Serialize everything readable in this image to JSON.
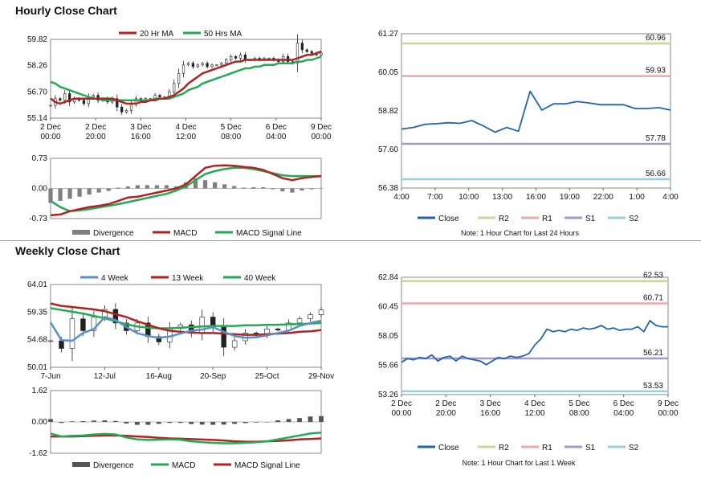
{
  "sections": {
    "hourly_title": "Hourly Close Chart",
    "weekly_title": "Weekly Close Chart"
  },
  "colors": {
    "ma_red": "#b22222",
    "ma_green": "#22aa55",
    "close_blue": "#2166ac",
    "r2": "#c8d89a",
    "r1": "#e8aaaa",
    "s1": "#a898c8",
    "s2": "#9ad0dc",
    "week4": "#5b8fc8",
    "divergence": "#808080"
  },
  "chart_data": [
    {
      "id": "hourly_price",
      "type": "candlestick",
      "legend": [
        "20 Hr MA",
        "50 Hrs MA"
      ],
      "ylim": [
        55.14,
        59.82
      ],
      "yticks": [
        "59.82",
        "58.26",
        "56.70",
        "55.14"
      ],
      "xticks": [
        [
          "2 Dec",
          "00:00"
        ],
        [
          "2 Dec",
          "20:00"
        ],
        [
          "3 Dec",
          "16:00"
        ],
        [
          "4 Dec",
          "12:00"
        ],
        [
          "5 Dec",
          "08:00"
        ],
        [
          "6 Dec",
          "04:00"
        ],
        [
          "9 Dec",
          "00:00"
        ]
      ],
      "close": [
        55.9,
        56.3,
        56.2,
        56.6,
        56.1,
        56.3,
        56.2,
        56.0,
        56.4,
        56.5,
        56.2,
        56.3,
        56.1,
        56.3,
        55.8,
        55.5,
        55.6,
        56.0,
        56.3,
        56.2,
        56.3,
        56.3,
        56.5,
        56.4,
        56.4,
        56.7,
        57.2,
        57.8,
        58.3,
        58.4,
        58.2,
        58.3,
        58.4,
        58.2,
        58.3,
        58.3,
        58.4,
        58.6,
        58.8,
        58.7,
        58.9,
        58.6,
        58.6,
        58.7,
        58.6,
        58.7,
        58.7,
        58.6,
        58.5,
        58.8,
        58.5,
        58.4,
        59.6,
        59.2,
        59.1,
        59.0,
        58.9,
        59.0
      ],
      "ma20": [
        56.3,
        56.1,
        56.0,
        56.1,
        56.2,
        56.3,
        56.3,
        56.3,
        56.3,
        56.3,
        56.3,
        56.3,
        56.3,
        56.3,
        56.2,
        56.1,
        56.0,
        56.0,
        56.0,
        56.1,
        56.1,
        56.2,
        56.2,
        56.3,
        56.3,
        56.4,
        56.5,
        56.7,
        56.9,
        57.2,
        57.4,
        57.6,
        57.8,
        57.9,
        58.0,
        58.1,
        58.2,
        58.3,
        58.4,
        58.5,
        58.5,
        58.6,
        58.6,
        58.6,
        58.6,
        58.6,
        58.6,
        58.6,
        58.6,
        58.6,
        58.6,
        58.6,
        58.7,
        58.8,
        58.9,
        58.9,
        59.0,
        59.1
      ],
      "ma50": [
        57.3,
        57.2,
        57.0,
        56.9,
        56.8,
        56.7,
        56.6,
        56.5,
        56.4,
        56.3,
        56.3,
        56.2,
        56.2,
        56.2,
        56.2,
        56.2,
        56.2,
        56.2,
        56.2,
        56.2,
        56.2,
        56.2,
        56.3,
        56.3,
        56.3,
        56.3,
        56.4,
        56.5,
        56.6,
        56.8,
        56.9,
        57.0,
        57.2,
        57.3,
        57.4,
        57.5,
        57.6,
        57.7,
        57.8,
        57.9,
        58.0,
        58.1,
        58.1,
        58.2,
        58.2,
        58.3,
        58.3,
        58.3,
        58.4,
        58.4,
        58.4,
        58.4,
        58.5,
        58.5,
        58.6,
        58.6,
        58.7,
        58.8
      ]
    },
    {
      "id": "hourly_macd",
      "type": "line",
      "legend": [
        "Divergence",
        "MACD",
        "MACD Signal Line"
      ],
      "ylim": [
        -0.73,
        0.73
      ],
      "yticks": [
        "0.73",
        "0.00",
        "-0.73"
      ],
      "macd": [
        -0.65,
        -0.63,
        -0.55,
        -0.5,
        -0.45,
        -0.42,
        -0.38,
        -0.3,
        -0.22,
        -0.2,
        -0.15,
        -0.1,
        -0.05,
        0.0,
        0.1,
        0.3,
        0.5,
        0.55,
        0.56,
        0.55,
        0.52,
        0.5,
        0.45,
        0.35,
        0.25,
        0.2,
        0.25,
        0.28,
        0.3
      ],
      "signal": [
        -0.3,
        -0.45,
        -0.55,
        -0.53,
        -0.5,
        -0.46,
        -0.42,
        -0.38,
        -0.33,
        -0.28,
        -0.23,
        -0.18,
        -0.13,
        -0.05,
        0.05,
        0.2,
        0.35,
        0.42,
        0.47,
        0.5,
        0.5,
        0.47,
        0.42,
        0.37,
        0.32,
        0.3,
        0.3,
        0.3,
        0.3
      ],
      "divergence": [
        -0.35,
        -0.3,
        -0.25,
        -0.2,
        -0.15,
        -0.1,
        -0.06,
        0.02,
        0.05,
        0.08,
        0.08,
        0.08,
        0.08,
        0.05,
        0.15,
        0.25,
        0.2,
        0.15,
        0.1,
        0.06,
        0.02,
        0.03,
        0.03,
        -0.02,
        -0.07,
        -0.1,
        -0.05,
        -0.02,
        0.0
      ]
    },
    {
      "id": "hourly_24h",
      "type": "line",
      "ylim": [
        56.38,
        61.27
      ],
      "yticks": [
        "61.27",
        "60.05",
        "58.82",
        "57.60",
        "56.38"
      ],
      "xticks": [
        "4:00",
        "7:00",
        "10:00",
        "13:00",
        "16:00",
        "19:00",
        "22:00",
        "1:00",
        "4:00"
      ],
      "levels": {
        "R2": 60.96,
        "R1": 59.93,
        "S1": 57.78,
        "S2": 56.66
      },
      "level_labels": {
        "R2": "60.96",
        "R1": "59.93",
        "S1": "57.78",
        "S2": "56.66"
      },
      "close": [
        58.25,
        58.3,
        58.4,
        58.42,
        58.45,
        58.43,
        58.52,
        58.35,
        58.15,
        58.3,
        58.18,
        59.45,
        58.85,
        59.05,
        59.05,
        59.12,
        59.08,
        59.02,
        59.02,
        59.02,
        58.9,
        58.9,
        58.93,
        58.85
      ],
      "legend": [
        "Close",
        "R2",
        "R1",
        "S1",
        "S2"
      ],
      "note": "Note: 1 Hour Chart for Last 24 Hours"
    },
    {
      "id": "weekly_price",
      "type": "candlestick",
      "legend": [
        "4 Week",
        "13 Week",
        "40 Week"
      ],
      "ylim": [
        50.01,
        64.01
      ],
      "yticks": [
        "64.01",
        "59.35",
        "54.68",
        "50.01"
      ],
      "xticks": [
        "7-Jun",
        "12-Jul",
        "16-Aug",
        "20-Sep",
        "25-Oct",
        "29-Nov"
      ],
      "close": [
        54.5,
        53.2,
        58.2,
        56.2,
        58.5,
        59.8,
        57.5,
        56.2,
        57.5,
        55.2,
        54.3,
        56.6,
        57.2,
        55.8,
        58.5,
        56.8,
        53.4,
        54.5,
        55.8,
        55.5,
        56.5,
        56.3,
        57.5,
        58.2,
        58.9,
        59.7
      ],
      "week4": [
        57.6,
        54.6,
        54.5,
        55.8,
        56.5,
        58.5,
        58.0,
        56.8,
        55.8,
        55.3,
        55.0,
        55.2,
        55.7,
        56.2,
        56.4,
        56.8,
        56.0,
        55.3,
        55.0,
        55.1,
        55.4,
        55.8,
        56.2,
        57.0,
        57.5,
        57.9
      ],
      "week13": [
        60.8,
        60.4,
        60.2,
        60.0,
        59.8,
        59.5,
        59.0,
        58.5,
        57.8,
        57.2,
        56.6,
        56.2,
        56.0,
        55.9,
        55.8,
        55.8,
        55.7,
        55.6,
        55.5,
        55.5,
        55.6,
        55.7,
        55.8,
        56.0,
        56.1,
        56.3
      ],
      "week40": [
        60.0,
        59.7,
        59.4,
        59.1,
        58.7,
        58.3,
        57.8,
        57.3,
        56.9,
        56.7,
        56.6,
        56.6,
        56.7,
        56.8,
        56.9,
        57.0,
        57.0,
        57.0,
        57.1,
        57.1,
        57.2,
        57.2,
        57.3,
        57.3,
        57.4,
        57.5
      ]
    },
    {
      "id": "weekly_macd",
      "type": "line",
      "legend": [
        "Divergence",
        "MACD",
        "MACD Signal Line"
      ],
      "ylim": [
        -1.62,
        1.62
      ],
      "yticks": [
        "1.62",
        "0.00",
        "-1.62"
      ],
      "macd": [
        -0.6,
        -0.75,
        -0.72,
        -0.7,
        -0.65,
        -0.62,
        -0.65,
        -0.8,
        -0.9,
        -0.93,
        -0.92,
        -0.9,
        -0.92,
        -1.0,
        -1.05,
        -1.08,
        -1.1,
        -1.1,
        -1.08,
        -1.05,
        -1.0,
        -0.9,
        -0.8,
        -0.7,
        -0.6,
        -0.55
      ],
      "signal": [
        -0.75,
        -0.75,
        -0.75,
        -0.74,
        -0.72,
        -0.7,
        -0.7,
        -0.72,
        -0.75,
        -0.78,
        -0.82,
        -0.85,
        -0.87,
        -0.89,
        -0.91,
        -0.93,
        -0.96,
        -1.0,
        -1.02,
        -1.02,
        -1.0,
        -0.98,
        -0.95,
        -0.9,
        -0.88,
        -0.85
      ],
      "divergence": [
        0.15,
        -0.05,
        0.03,
        0.04,
        0.07,
        0.08,
        0.05,
        -0.08,
        -0.15,
        -0.15,
        -0.1,
        -0.05,
        -0.05,
        -0.11,
        -0.14,
        -0.15,
        -0.14,
        -0.1,
        -0.06,
        -0.03,
        0.0,
        0.08,
        0.15,
        0.2,
        0.28,
        0.3
      ]
    },
    {
      "id": "weekly_1w",
      "type": "line",
      "ylim": [
        53.26,
        62.84
      ],
      "yticks": [
        "62.84",
        "60.45",
        "58.05",
        "55.66",
        "53.26"
      ],
      "xticks": [
        [
          "2 Dec",
          "00:00"
        ],
        [
          "2 Dec",
          "20:00"
        ],
        [
          "3 Dec",
          "16:00"
        ],
        [
          "4 Dec",
          "12:00"
        ],
        [
          "5 Dec",
          "08:00"
        ],
        [
          "6 Dec",
          "04:00"
        ],
        [
          "9 Dec",
          "00:00"
        ]
      ],
      "levels": {
        "R2": 62.53,
        "R1": 60.71,
        "S1": 56.21,
        "S2": 53.53
      },
      "level_labels": {
        "R2": "62.53",
        "R1": "60.71",
        "S1": "56.21",
        "S2": "53.53"
      },
      "close": [
        55.9,
        56.2,
        56.1,
        56.3,
        56.2,
        56.5,
        56.0,
        56.3,
        56.4,
        56.0,
        56.4,
        56.2,
        56.1,
        56.0,
        55.7,
        56.0,
        56.3,
        56.2,
        56.4,
        56.3,
        56.4,
        56.6,
        57.3,
        57.8,
        58.6,
        58.4,
        58.5,
        58.4,
        58.6,
        58.5,
        58.7,
        58.6,
        58.7,
        58.9,
        58.6,
        58.7,
        58.5,
        58.6,
        58.6,
        58.8,
        58.4,
        59.3,
        58.9,
        58.8,
        58.8
      ],
      "legend": [
        "Close",
        "R2",
        "R1",
        "S1",
        "S2"
      ],
      "note": "Note: 1 Hour Chart for Last 1 Week"
    }
  ]
}
